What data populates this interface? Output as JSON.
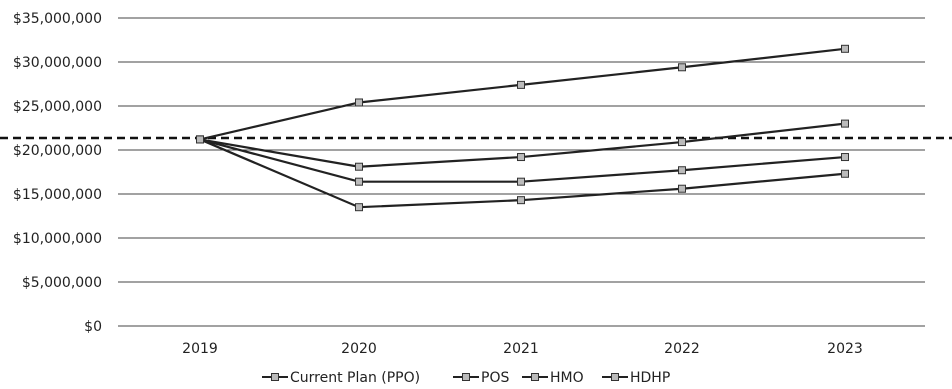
{
  "chart_data": {
    "type": "line",
    "title": "",
    "xlabel": "",
    "ylabel": "",
    "categories": [
      "2019",
      "2020",
      "2021",
      "2022",
      "2023"
    ],
    "ylim": [
      0,
      35000000
    ],
    "y_ticks": [
      0,
      5000000,
      10000000,
      15000000,
      20000000,
      25000000,
      30000000,
      35000000
    ],
    "y_tick_labels": [
      "$0",
      "$5,000,000",
      "$10,000,000",
      "$15,000,000",
      "$20,000,000",
      "$25,000,000",
      "$30,000,000",
      "$35,000,000"
    ],
    "grid": true,
    "legend_position": "bottom",
    "series": [
      {
        "name": "Current Plan (PPO)",
        "values": [
          21200000,
          25400000,
          27400000,
          29400000,
          31500000
        ],
        "color": "#222222"
      },
      {
        "name": "POS",
        "values": [
          21200000,
          18100000,
          19200000,
          20900000,
          23000000
        ],
        "color": "#222222"
      },
      {
        "name": "HMO",
        "values": [
          21200000,
          16400000,
          16400000,
          17700000,
          19200000
        ],
        "color": "#222222"
      },
      {
        "name": "HDHP",
        "values": [
          21200000,
          13500000,
          14300000,
          15600000,
          17300000
        ],
        "color": "#222222"
      }
    ],
    "reference_line": {
      "value": 21200000,
      "style": "dashed"
    }
  }
}
